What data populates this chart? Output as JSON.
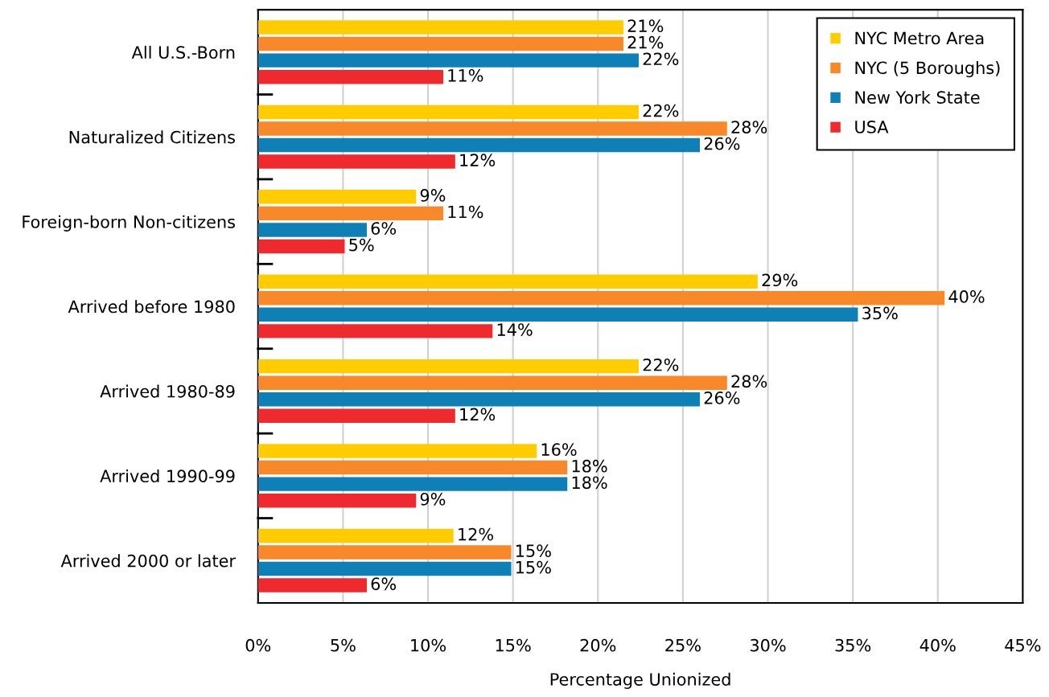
{
  "chart_data": {
    "type": "bar",
    "orientation": "horizontal",
    "xlabel": "Percentage Unionized",
    "categories": [
      "All U.S.-Born",
      "Naturalized Citizens",
      "Foreign-born Non-citizens",
      "Arrived before 1980",
      "Arrived 1980-89",
      "Arrived 1990-99",
      "Arrived 2000 or later"
    ],
    "series": [
      {
        "name": "NYC Metro Area",
        "color": "#ffcc00",
        "values": [
          21.5,
          22.4,
          9.3,
          29.4,
          22.4,
          16.4,
          11.5
        ],
        "value_labels": [
          "21%",
          "22%",
          "9%",
          "29%",
          "22%",
          "16%",
          "12%"
        ]
      },
      {
        "name": "NYC (5 Boroughs)",
        "color": "#f7892a",
        "values": [
          21.5,
          27.6,
          10.9,
          40.4,
          27.6,
          18.2,
          14.9
        ],
        "value_labels": [
          "21%",
          "28%",
          "11%",
          "40%",
          "28%",
          "18%",
          "15%"
        ]
      },
      {
        "name": "New York State",
        "color": "#0f80b5",
        "values": [
          22.4,
          26.0,
          6.4,
          35.3,
          26.0,
          18.2,
          14.9
        ],
        "value_labels": [
          "22%",
          "26%",
          "6%",
          "35%",
          "26%",
          "18%",
          "15%"
        ]
      },
      {
        "name": "USA",
        "color": "#ee2a2e",
        "values": [
          10.9,
          11.6,
          5.1,
          13.8,
          11.6,
          9.3,
          6.4
        ],
        "value_labels": [
          "11%",
          "12%",
          "5%",
          "14%",
          "12%",
          "9%",
          "6%"
        ]
      }
    ],
    "xlim": [
      0,
      45
    ],
    "xticks": [
      {
        "value": 0,
        "label": "0%"
      },
      {
        "value": 5,
        "label": "5%"
      },
      {
        "value": 10,
        "label": "10%"
      },
      {
        "value": 15,
        "label": "15%"
      },
      {
        "value": 20,
        "label": "20%"
      },
      {
        "value": 25,
        "label": "25%"
      },
      {
        "value": 30,
        "label": "30%"
      },
      {
        "value": 35,
        "label": "35%"
      },
      {
        "value": 40,
        "label": "40%"
      },
      {
        "value": 45,
        "label": "45%"
      }
    ],
    "grid": "x",
    "legend": "top right"
  }
}
